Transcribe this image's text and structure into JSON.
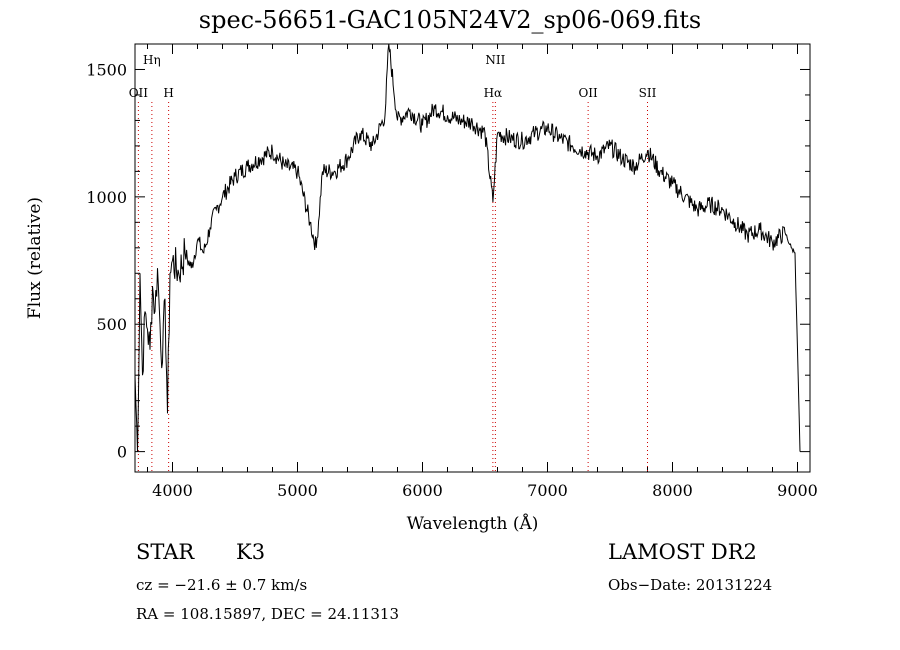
{
  "chart_data": {
    "type": "line",
    "title": "spec-56651-GAC105N24V2_sp06-069.fits",
    "xlabel": "Wavelength (Å)",
    "ylabel": "Flux (relative)",
    "xlim": [
      3700,
      9100
    ],
    "ylim": [
      -80,
      1600
    ],
    "xticks": [
      4000,
      5000,
      6000,
      7000,
      8000,
      9000
    ],
    "yticks": [
      0,
      500,
      1000,
      1500
    ],
    "xtick_labels": [
      "4000",
      "5000",
      "6000",
      "7000",
      "8000",
      "9000"
    ],
    "ytick_labels": [
      "0",
      "500",
      "1000",
      "1500"
    ],
    "grid": false,
    "line_color": "#000000",
    "marker_color": "#cc0000",
    "series": [
      {
        "x": [
          3700,
          3720,
          3740,
          3760,
          3780,
          3800,
          3820,
          3840,
          3860,
          3880,
          3900,
          3920,
          3940,
          3960,
          3980,
          4000,
          4050,
          4100,
          4150,
          4200,
          4250,
          4300,
          4350,
          4400,
          4500,
          4600,
          4700,
          4800,
          4900,
          5000,
          5100,
          5150,
          5200,
          5300,
          5400,
          5500,
          5600,
          5700,
          5730,
          5800,
          5900,
          6000,
          6100,
          6200,
          6300,
          6400,
          6500,
          6563,
          6600,
          6700,
          6800,
          6900,
          7000,
          7100,
          7200,
          7300,
          7400,
          7500,
          7600,
          7700,
          7800,
          7900,
          8000,
          8100,
          8200,
          8300,
          8400,
          8500,
          8600,
          8700,
          8800,
          8900,
          8950,
          8980,
          9000,
          9020
        ],
        "y": [
          300,
          0,
          700,
          300,
          550,
          480,
          400,
          650,
          550,
          720,
          500,
          350,
          600,
          150,
          700,
          750,
          700,
          780,
          720,
          830,
          780,
          880,
          950,
          1000,
          1080,
          1120,
          1150,
          1180,
          1120,
          1100,
          900,
          800,
          1100,
          1100,
          1150,
          1250,
          1200,
          1320,
          1600,
          1300,
          1340,
          1280,
          1350,
          1320,
          1300,
          1290,
          1250,
          980,
          1250,
          1230,
          1220,
          1250,
          1270,
          1230,
          1200,
          1180,
          1160,
          1200,
          1150,
          1120,
          1180,
          1100,
          1050,
          1000,
          950,
          970,
          950,
          900,
          850,
          870,
          820,
          860,
          800,
          780,
          400,
          0
        ]
      }
    ],
    "line_markers": [
      {
        "label": "OII",
        "wavelength": 3727,
        "row": 2
      },
      {
        "label": "Hη",
        "wavelength": 3835,
        "row": 1
      },
      {
        "label": "H",
        "wavelength": 3969,
        "row": 2
      },
      {
        "label": "NII",
        "wavelength": 6583,
        "row": 1
      },
      {
        "label": "Hα",
        "wavelength": 6563,
        "row": 2
      },
      {
        "label": "OII",
        "wavelength": 7325,
        "row": 2
      },
      {
        "label": "SII",
        "wavelength": 7800,
        "row": 2
      }
    ]
  },
  "info": {
    "object_class": "STAR",
    "subclass": "K3",
    "release": "LAMOST DR2",
    "redshift_line": "cz = −21.6 ± 0.7 km/s",
    "obs_date": "Obs−Date: 20131224",
    "coords": "RA = 108.15897, DEC =  24.11313"
  }
}
